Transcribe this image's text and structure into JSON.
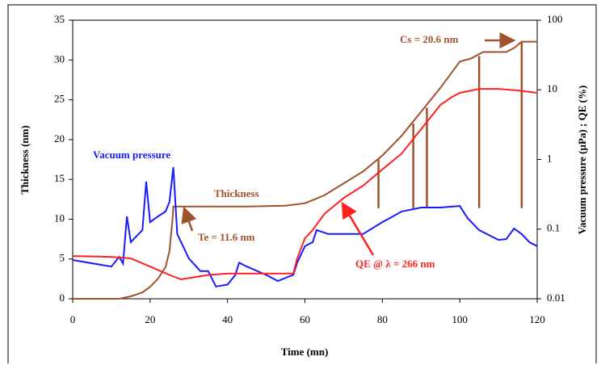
{
  "chart_data": {
    "type": "line",
    "xlabel": "Time (mn)",
    "ylabel": "Thickness (nm)",
    "y2label": "Vacuum pressure (µPa) ; QE (%)",
    "xlim": [
      0,
      120
    ],
    "xticks": [
      0,
      20,
      40,
      60,
      80,
      100,
      120
    ],
    "ylim": [
      0,
      35
    ],
    "yticks": [
      0,
      5,
      10,
      15,
      20,
      25,
      30,
      35
    ],
    "y2lim": [
      0.01,
      100
    ],
    "y2ticks": [
      0.01,
      0.1,
      1,
      10,
      100
    ],
    "y2scale": "log",
    "series": [
      {
        "name": "Thickness",
        "color": "#a0522d",
        "x": [
          0,
          12,
          15,
          18,
          20,
          22,
          24,
          25,
          25.8,
          26,
          35,
          45,
          55,
          60,
          65,
          70,
          75,
          80,
          85,
          90,
          95,
          100,
          103,
          106,
          112,
          114,
          116,
          120
        ],
        "values": [
          0,
          0,
          0.3,
          0.8,
          1.5,
          2.5,
          4,
          6,
          10,
          11.6,
          11.6,
          11.6,
          11.7,
          12,
          13,
          14.5,
          16,
          18,
          20.5,
          23.5,
          26.5,
          29.8,
          30.2,
          31,
          31,
          31.5,
          32.3,
          32.3
        ]
      },
      {
        "name": "Vacuum pressure",
        "color": "#1a1aff",
        "axis": "y2",
        "x": [
          0,
          10,
          12,
          13,
          14,
          15,
          17,
          18,
          19,
          20,
          22,
          24,
          25,
          26,
          27,
          30,
          33,
          35,
          37,
          40,
          42,
          43,
          45,
          50,
          53,
          56,
          57,
          58,
          60,
          62,
          63,
          66,
          70,
          75,
          80,
          85,
          90,
          95,
          100,
          102,
          105,
          110,
          112,
          114,
          116,
          118,
          120
        ],
        "values": [
          0.036,
          0.029,
          0.04,
          0.032,
          0.152,
          0.065,
          0.085,
          0.097,
          0.48,
          0.126,
          0.152,
          0.179,
          0.246,
          0.776,
          0.085,
          0.038,
          0.025,
          0.025,
          0.015,
          0.016,
          0.022,
          0.033,
          0.029,
          0.022,
          0.018,
          0.021,
          0.022,
          0.033,
          0.057,
          0.065,
          0.097,
          0.085,
          0.085,
          0.085,
          0.126,
          0.179,
          0.204,
          0.204,
          0.215,
          0.144,
          0.097,
          0.07,
          0.072,
          0.102,
          0.085,
          0.065,
          0.057
        ]
      },
      {
        "name": "QE",
        "color": "#ff2020",
        "axis": "y2",
        "x": [
          0,
          10,
          15,
          20,
          25,
          28,
          35,
          40,
          50,
          57,
          58,
          60,
          62,
          65,
          70,
          75,
          80,
          85,
          90,
          95,
          98,
          100,
          105,
          110,
          115,
          120
        ],
        "values": [
          0.041,
          0.04,
          0.038,
          0.029,
          0.022,
          0.019,
          0.022,
          0.023,
          0.023,
          0.023,
          0.038,
          0.074,
          0.097,
          0.165,
          0.28,
          0.42,
          0.72,
          1.22,
          2.72,
          6.07,
          7.92,
          9.05,
          10.3,
          10.3,
          9.8,
          9.05
        ]
      }
    ],
    "event_lines": {
      "color": "#a0522d",
      "x": [
        79,
        88,
        91.5,
        105,
        116
      ],
      "top": [
        17.5,
        22,
        24,
        30.5,
        32.3
      ],
      "bottom": [
        0.2,
        0.2,
        0.2,
        0.2,
        0.2
      ]
    },
    "annotations": [
      {
        "text": "Vacuum pressure",
        "color": "#1a1aff"
      },
      {
        "text": "Thickness",
        "color": "#a0522d"
      },
      {
        "text": "Te = 11.6 nm",
        "color": "#a0522d"
      },
      {
        "text": "Cs = 20.6 nm",
        "color": "#a0522d"
      },
      {
        "text": "QE @ λ = 266 nm",
        "color": "#ff2020"
      }
    ]
  }
}
